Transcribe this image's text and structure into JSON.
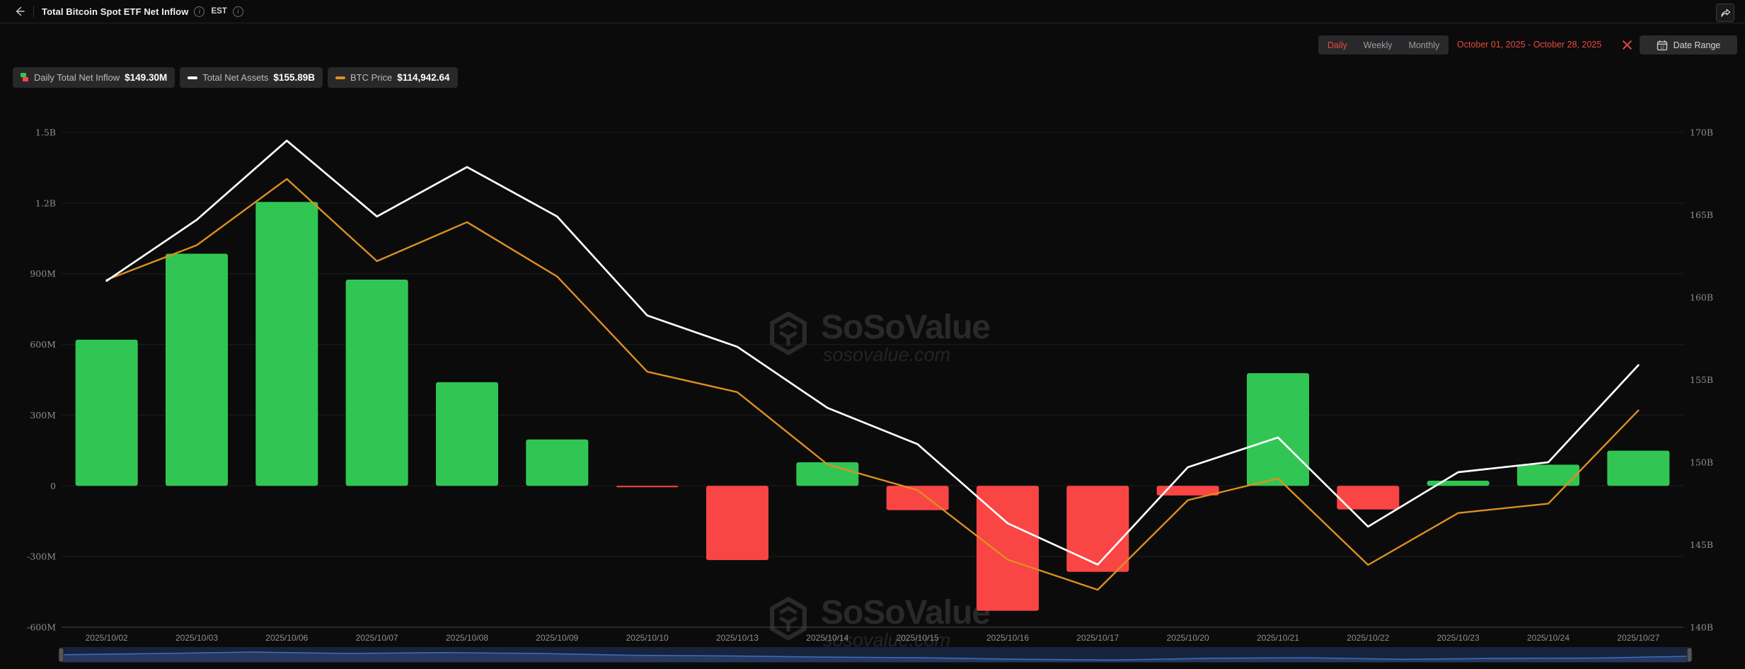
{
  "header": {
    "title": "Total Bitcoin Spot ETF Net Inflow",
    "timezone": "EST"
  },
  "controls": {
    "tabs": [
      "Daily",
      "Weekly",
      "Monthly"
    ],
    "active_tab": "Daily",
    "date_range": "October 01, 2025 - October 28, 2025",
    "date_range_button": "Date Range"
  },
  "legend": [
    {
      "label": "Daily Total Net Inflow",
      "value": "$149.30M"
    },
    {
      "label": "Total Net Assets",
      "value": "$155.89B"
    },
    {
      "label": "BTC Price",
      "value": "$114,942.64"
    }
  ],
  "watermark": {
    "brand": "SoSoValue",
    "domain": "sosovalue.com"
  },
  "colors": {
    "accent_red": "#e8493f",
    "bar_green": "#31c653",
    "bar_red": "#fa4545",
    "line_white": "#ffffff",
    "line_orange": "#dd8f21",
    "scroll_line_blue": "#3e69bd",
    "tab_inactive": "#9c9c9c"
  },
  "chart_data": {
    "type": "combo",
    "title": "Total Bitcoin Spot ETF Net Inflow",
    "categories": [
      "2025/10/02",
      "2025/10/03",
      "2025/10/06",
      "2025/10/07",
      "2025/10/08",
      "2025/10/09",
      "2025/10/10",
      "2025/10/13",
      "2025/10/14",
      "2025/10/15",
      "2025/10/16",
      "2025/10/17",
      "2025/10/20",
      "2025/10/21",
      "2025/10/22",
      "2025/10/23",
      "2025/10/24",
      "2025/10/27"
    ],
    "series": [
      {
        "name": "Daily Total Net Inflow",
        "type": "bar",
        "axis": "left",
        "unit": "USD millions",
        "color_positive": "#31c653",
        "color_negative": "#fa4545",
        "values": [
          620,
          985,
          1205,
          875,
          440,
          197,
          -6,
          -315,
          100,
          -103,
          -530,
          -365,
          -41,
          478,
          -100,
          22,
          90,
          149.3
        ]
      },
      {
        "name": "Total Net Assets",
        "type": "line",
        "axis": "right",
        "unit": "USD billions",
        "color": "#ffffff",
        "values": [
          161.0,
          164.7,
          169.5,
          164.9,
          167.9,
          164.9,
          158.9,
          157.0,
          153.3,
          151.1,
          146.3,
          143.8,
          149.7,
          151.5,
          146.1,
          149.4,
          150.0,
          155.89
        ]
      },
      {
        "name": "BTC Price",
        "type": "line",
        "axis": "btc",
        "unit": "USD",
        "color": "#dd8f21",
        "values": [
          122870,
          124970,
          128990,
          124000,
          126370,
          123070,
          117290,
          116050,
          111660,
          110100,
          105880,
          104050,
          109490,
          110810,
          105560,
          108710,
          109280,
          114942.64
        ]
      }
    ],
    "left_axis": {
      "min": -600,
      "max": 1500,
      "tick_values": [
        1500,
        1200,
        900,
        600,
        300,
        0,
        -300,
        -600
      ],
      "tick_labels": [
        "1.5B",
        "1.2B",
        "900M",
        "600M",
        "300M",
        "0",
        "-300M",
        "-600M"
      ]
    },
    "right_axis": {
      "min": 140,
      "max": 170,
      "tick_values": [
        170,
        165,
        160,
        155,
        150,
        145,
        140
      ],
      "tick_labels": [
        "170B",
        "165B",
        "160B",
        "155B",
        "150B",
        "145B",
        "140B"
      ]
    },
    "btc_axis": {
      "min": 101776,
      "max": 131820,
      "hidden": true
    },
    "grid": true,
    "legend_position": "top-left"
  }
}
